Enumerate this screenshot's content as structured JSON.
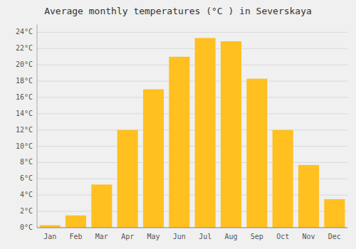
{
  "chart_data": {
    "type": "bar",
    "title": "Average monthly temperatures (°C ) in Severskaya",
    "categories": [
      "Jan",
      "Feb",
      "Mar",
      "Apr",
      "May",
      "Jun",
      "Jul",
      "Aug",
      "Sep",
      "Oct",
      "Nov",
      "Dec"
    ],
    "values": [
      0.3,
      1.5,
      5.3,
      12.0,
      17.0,
      21.0,
      23.3,
      22.9,
      18.3,
      12.0,
      7.7,
      3.5
    ],
    "color": "#FFC020",
    "ylim": [
      0,
      25
    ],
    "yticks": [
      {
        "value": 0,
        "label": "0°C"
      },
      {
        "value": 2,
        "label": "2°C"
      },
      {
        "value": 4,
        "label": "4°C"
      },
      {
        "value": 6,
        "label": "6°C"
      },
      {
        "value": 8,
        "label": "8°C"
      },
      {
        "value": 10,
        "label": "10°C"
      },
      {
        "value": 12,
        "label": "12°C"
      },
      {
        "value": 14,
        "label": "14°C"
      },
      {
        "value": 16,
        "label": "16°C"
      },
      {
        "value": 18,
        "label": "18°C"
      },
      {
        "value": 20,
        "label": "20°C"
      },
      {
        "value": 22,
        "label": "22°C"
      },
      {
        "value": 24,
        "label": "24°C"
      }
    ],
    "grid": true
  }
}
